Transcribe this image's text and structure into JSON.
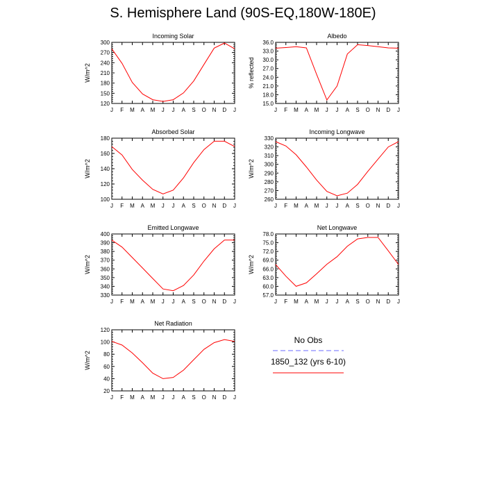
{
  "title": "S. Hemisphere Land (90S-EQ,180W-180E)",
  "months": [
    "J",
    "F",
    "M",
    "A",
    "M",
    "J",
    "J",
    "A",
    "S",
    "O",
    "N",
    "D",
    "J"
  ],
  "colors": {
    "model": "#ff0000",
    "obs": "#6a6aff",
    "axis": "#000000"
  },
  "legend": {
    "obs_label": "No Obs",
    "model_label": "1850_132 (yrs 6-10)"
  },
  "chart_data": [
    {
      "type": "line",
      "title": "Incoming Solar",
      "ylabel": "W/m^2",
      "ylim": [
        120,
        300
      ],
      "yticks": [
        120,
        150,
        180,
        210,
        240,
        270,
        300
      ],
      "ytick_labels": [
        "120",
        "150",
        "180",
        "210",
        "240",
        "270",
        "300"
      ],
      "series": [
        {
          "values": [
            281,
            238,
            182,
            148,
            131,
            126,
            131,
            151,
            186,
            235,
            283,
            298,
            281
          ]
        }
      ]
    },
    {
      "type": "line",
      "title": "Albedo",
      "ylabel": "% reflected",
      "ylim": [
        15,
        36
      ],
      "yticks": [
        15,
        18,
        21,
        24,
        27,
        30,
        33,
        36
      ],
      "ytick_labels": [
        "15.0",
        "18.0",
        "21.0",
        "24.0",
        "27.0",
        "30.0",
        "33.0",
        "36.0"
      ],
      "series": [
        {
          "values": [
            34.0,
            34.2,
            34.5,
            34.1,
            25.0,
            16.2,
            21.0,
            32.0,
            35.2,
            34.9,
            34.5,
            34.1,
            34.0
          ]
        }
      ]
    },
    {
      "type": "line",
      "title": "Absorbed Solar",
      "ylabel": "W/m^2",
      "ylim": [
        100,
        180
      ],
      "yticks": [
        100,
        120,
        140,
        160,
        180
      ],
      "ytick_labels": [
        "100",
        "120",
        "140",
        "160",
        "180"
      ],
      "series": [
        {
          "values": [
            169,
            158,
            139,
            125,
            113,
            107,
            112,
            128,
            148,
            165,
            176,
            176,
            169
          ]
        }
      ]
    },
    {
      "type": "line",
      "title": "Incoming Longwave",
      "ylabel": "W/m^2",
      "ylim": [
        260,
        330
      ],
      "yticks": [
        260,
        270,
        280,
        290,
        300,
        310,
        320,
        330
      ],
      "ytick_labels": [
        "260",
        "270",
        "280",
        "290",
        "300",
        "310",
        "320",
        "330"
      ],
      "series": [
        {
          "values": [
            326,
            321,
            311,
            297,
            282,
            269,
            264,
            267,
            277,
            292,
            306,
            320,
            326
          ]
        }
      ]
    },
    {
      "type": "line",
      "title": "Emitted Longwave",
      "ylabel": "W/m^2",
      "ylim": [
        330,
        400
      ],
      "yticks": [
        330,
        340,
        350,
        360,
        370,
        380,
        390,
        400
      ],
      "ytick_labels": [
        "330",
        "340",
        "350",
        "360",
        "370",
        "380",
        "390",
        "400"
      ],
      "series": [
        {
          "values": [
            393,
            385,
            373,
            361,
            349,
            337,
            335,
            341,
            353,
            369,
            383,
            393,
            393
          ]
        }
      ]
    },
    {
      "type": "line",
      "title": "Net Longwave",
      "ylabel": "W/m^2",
      "ylim": [
        57,
        78
      ],
      "yticks": [
        57,
        60,
        63,
        66,
        69,
        72,
        75,
        78
      ],
      "ytick_labels": [
        "57.0",
        "60.0",
        "63.0",
        "66.0",
        "69.0",
        "72.0",
        "75.0",
        "78.0"
      ],
      "series": [
        {
          "values": [
            67.5,
            63.5,
            60.0,
            61.2,
            64.3,
            67.6,
            70.2,
            73.8,
            76.3,
            76.8,
            76.8,
            72.2,
            67.5
          ]
        }
      ]
    },
    {
      "type": "line",
      "title": "Net Radiation",
      "ylabel": "W/m^2",
      "ylim": [
        20,
        120
      ],
      "yticks": [
        20,
        40,
        60,
        80,
        100,
        120
      ],
      "ytick_labels": [
        "20",
        "40",
        "60",
        "80",
        "100",
        "120"
      ],
      "series": [
        {
          "values": [
            101,
            95,
            82,
            66,
            49,
            40,
            42,
            54,
            71,
            88,
            99,
            104,
            101
          ]
        }
      ]
    }
  ]
}
